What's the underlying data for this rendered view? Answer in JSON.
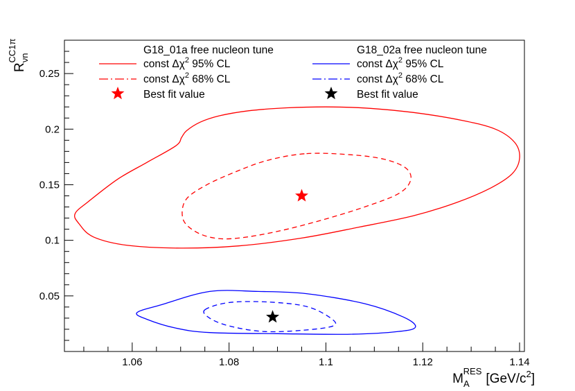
{
  "chart_data": {
    "type": "line",
    "title": "",
    "xlabel": {
      "main": "M",
      "sub": "A",
      "sup": "RES",
      "unit_pre": "[GeV/c",
      "unit_sup": "2",
      "unit_post": "]"
    },
    "ylabel": {
      "main": "R",
      "sub": "νn",
      "sup": "CC1π"
    },
    "xlim": [
      1.046,
      1.141
    ],
    "ylim": [
      0.0,
      0.28
    ],
    "xticks": [
      1.06,
      1.08,
      1.1,
      1.12,
      1.14
    ],
    "xtick_labels": [
      "1.06",
      "1.08",
      "1.1",
      "1.12",
      "1.14"
    ],
    "yticks": [
      0.05,
      0.1,
      0.15,
      0.2,
      0.25
    ],
    "ytick_labels": [
      "0.05",
      "0.1",
      "0.15",
      "0.2",
      "0.25"
    ],
    "grid": false,
    "legend": {
      "placement": "top",
      "groups": [
        {
          "title": "G18_01a free nucleon tune",
          "color": "#ff0000",
          "entries": [
            {
              "style": "solid",
              "label": "const Δχ² 95% CL",
              "pre": "const Δχ",
              "sup": "2",
              "post": " 95% CL"
            },
            {
              "style": "dashdot",
              "label": "const Δχ² 68% CL",
              "pre": "const Δχ",
              "sup": "2",
              "post": " 68% CL"
            },
            {
              "style": "star",
              "label": "Best fit value"
            }
          ]
        },
        {
          "title": "G18_02a free nucleon tune",
          "color": "#0000ff",
          "star_color": "#000000",
          "entries": [
            {
              "style": "solid",
              "label": "const Δχ² 95% CL",
              "pre": "const Δχ",
              "sup": "2",
              "post": " 95% CL"
            },
            {
              "style": "dashdot",
              "label": "const Δχ² 68% CL",
              "pre": "const Δχ",
              "sup": "2",
              "post": " 68% CL"
            },
            {
              "style": "star",
              "label": "Best fit value"
            }
          ]
        }
      ]
    },
    "series": [
      {
        "name": "G18_01a const Δχ² 95% CL",
        "color": "#ff0000",
        "style": "solid",
        "points": [
          [
            1.0702,
            0.1925
          ],
          [
            1.0712,
            0.1985
          ],
          [
            1.074,
            0.2062
          ],
          [
            1.078,
            0.212
          ],
          [
            1.084,
            0.2165
          ],
          [
            1.092,
            0.2192
          ],
          [
            1.1,
            0.22
          ],
          [
            1.108,
            0.219
          ],
          [
            1.118,
            0.215
          ],
          [
            1.128,
            0.208
          ],
          [
            1.135,
            0.2
          ],
          [
            1.139,
            0.188
          ],
          [
            1.14,
            0.174
          ],
          [
            1.1385,
            0.16
          ],
          [
            1.134,
            0.147
          ],
          [
            1.127,
            0.134
          ],
          [
            1.118,
            0.122
          ],
          [
            1.107,
            0.112
          ],
          [
            1.095,
            0.102
          ],
          [
            1.082,
            0.095
          ],
          [
            1.07,
            0.093
          ],
          [
            1.059,
            0.0955
          ],
          [
            1.052,
            0.103
          ],
          [
            1.049,
            0.115
          ],
          [
            1.0482,
            0.124
          ],
          [
            1.051,
            0.135
          ],
          [
            1.057,
            0.155
          ],
          [
            1.063,
            0.17
          ],
          [
            1.069,
            0.185
          ],
          [
            1.0702,
            0.1925
          ]
        ]
      },
      {
        "name": "G18_01a const Δχ² 68% CL",
        "color": "#ff0000",
        "style": "dashed",
        "points": [
          [
            1.096,
            0.178
          ],
          [
            1.105,
            0.177
          ],
          [
            1.112,
            0.173
          ],
          [
            1.1165,
            0.165
          ],
          [
            1.1175,
            0.154
          ],
          [
            1.115,
            0.142
          ],
          [
            1.108,
            0.13
          ],
          [
            1.099,
            0.118
          ],
          [
            1.09,
            0.108
          ],
          [
            1.082,
            0.102
          ],
          [
            1.077,
            0.102
          ],
          [
            1.073,
            0.108
          ],
          [
            1.0705,
            0.119
          ],
          [
            1.071,
            0.136
          ],
          [
            1.075,
            0.149
          ],
          [
            1.081,
            0.161
          ],
          [
            1.088,
            0.172
          ],
          [
            1.096,
            0.178
          ]
        ]
      },
      {
        "name": "G18_02a const Δχ² 95% CL",
        "color": "#0000ff",
        "style": "solid",
        "points": [
          [
            1.061,
            0.035
          ],
          [
            1.066,
            0.042
          ],
          [
            1.076,
            0.054
          ],
          [
            1.086,
            0.054
          ],
          [
            1.096,
            0.052
          ],
          [
            1.108,
            0.043
          ],
          [
            1.116,
            0.031
          ],
          [
            1.1185,
            0.022
          ],
          [
            1.115,
            0.018
          ],
          [
            1.105,
            0.0155
          ],
          [
            1.09,
            0.016
          ],
          [
            1.076,
            0.017
          ],
          [
            1.069,
            0.021
          ],
          [
            1.063,
            0.029
          ],
          [
            1.061,
            0.035
          ]
        ]
      },
      {
        "name": "G18_02a const Δχ² 68% CL",
        "color": "#0000ff",
        "style": "dashed",
        "points": [
          [
            1.075,
            0.0375
          ],
          [
            1.08,
            0.044
          ],
          [
            1.088,
            0.0445
          ],
          [
            1.096,
            0.0405
          ],
          [
            1.101,
            0.03
          ],
          [
            1.1015,
            0.023
          ],
          [
            1.095,
            0.019
          ],
          [
            1.087,
            0.018
          ],
          [
            1.08,
            0.023
          ],
          [
            1.076,
            0.03
          ],
          [
            1.075,
            0.0375
          ]
        ]
      }
    ],
    "best_fit": [
      {
        "name": "G18_01a best fit",
        "x": 1.095,
        "y": 0.14,
        "color": "#ff0000"
      },
      {
        "name": "G18_02a best fit",
        "x": 1.089,
        "y": 0.031,
        "color": "#000000"
      }
    ]
  }
}
